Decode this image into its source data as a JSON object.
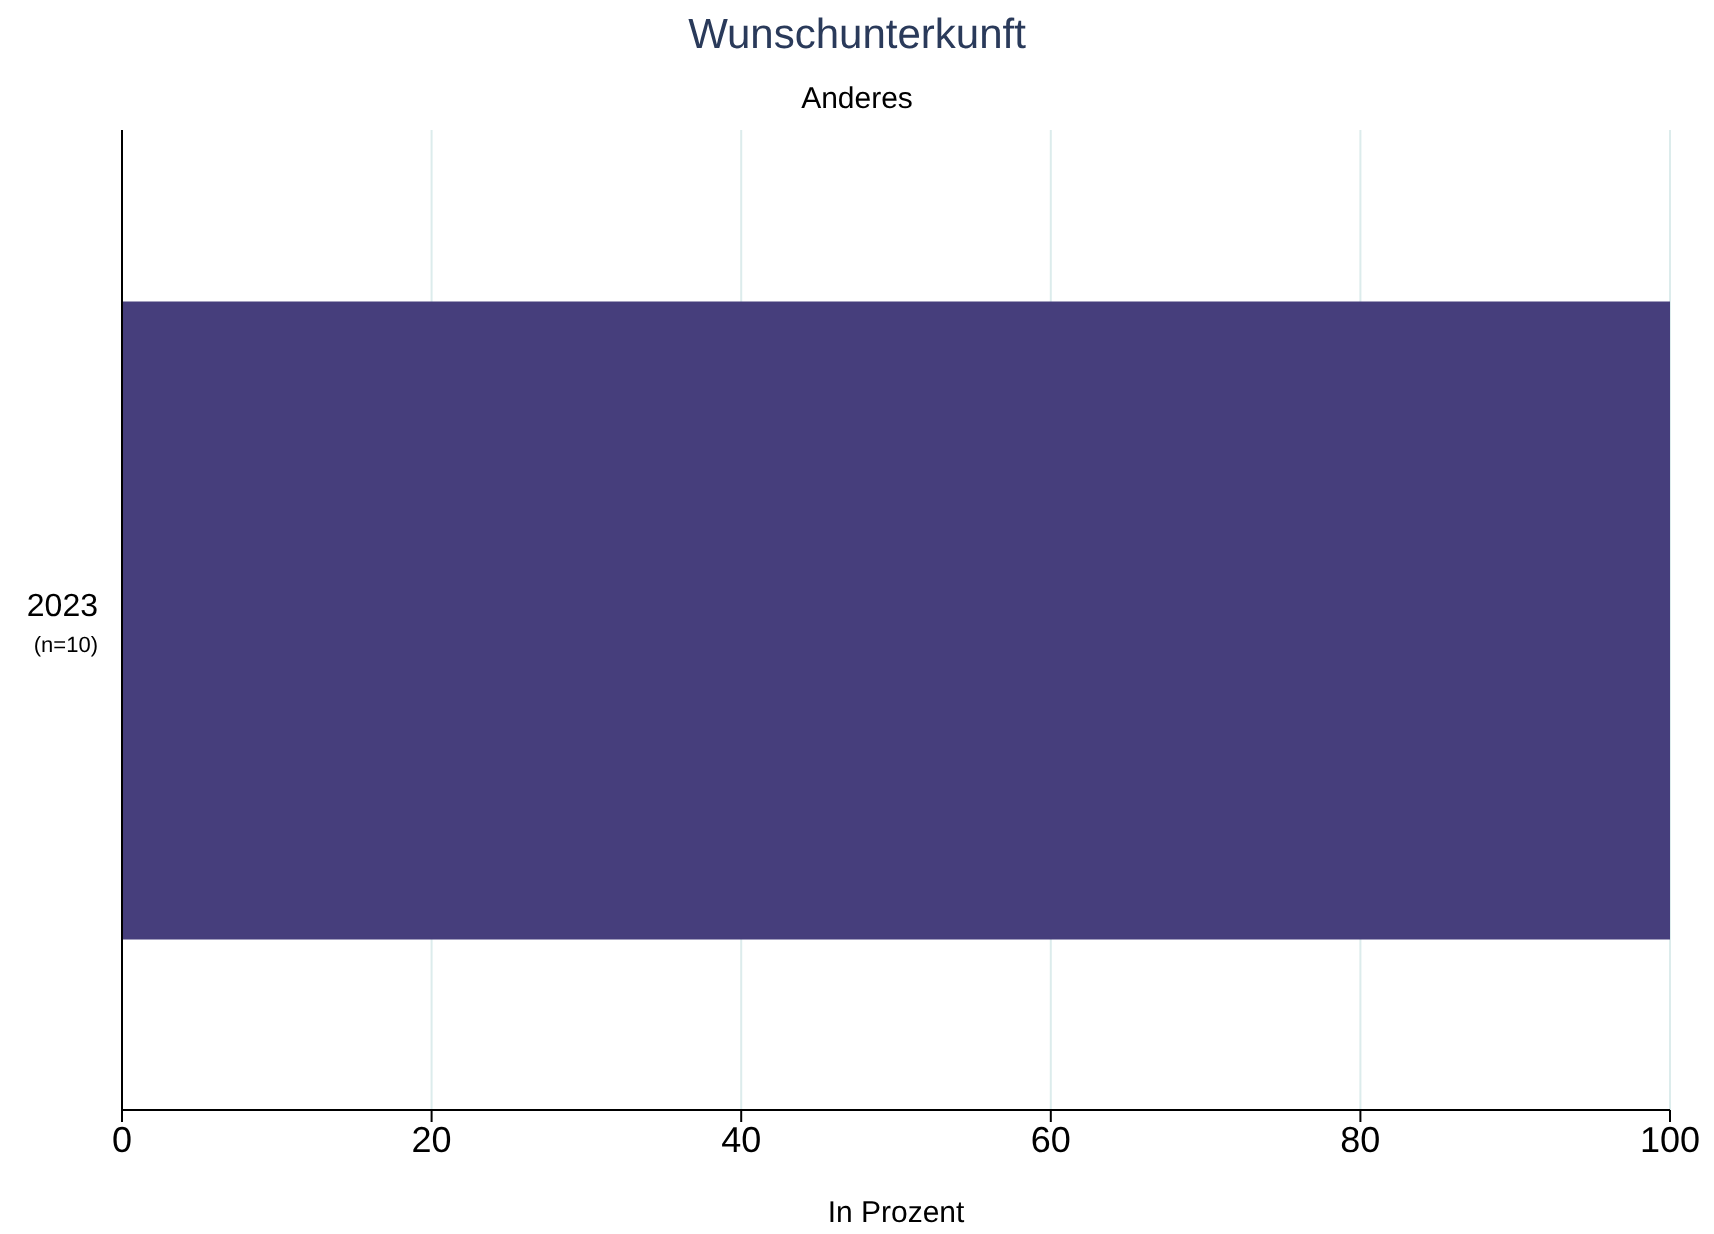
{
  "chart_data": {
    "type": "bar",
    "orientation": "horizontal",
    "title": "Wunschunterkunft",
    "subtitle": "Anderes",
    "xlabel": "In Prozent",
    "categories": [
      "2023\n$_{(n=10)}$"
    ],
    "values": [
      100
    ],
    "color": "#463e7c",
    "xlim": [
      0,
      100
    ],
    "xticks": [
      0,
      20,
      40,
      60,
      80,
      100
    ],
    "grid": "x"
  }
}
